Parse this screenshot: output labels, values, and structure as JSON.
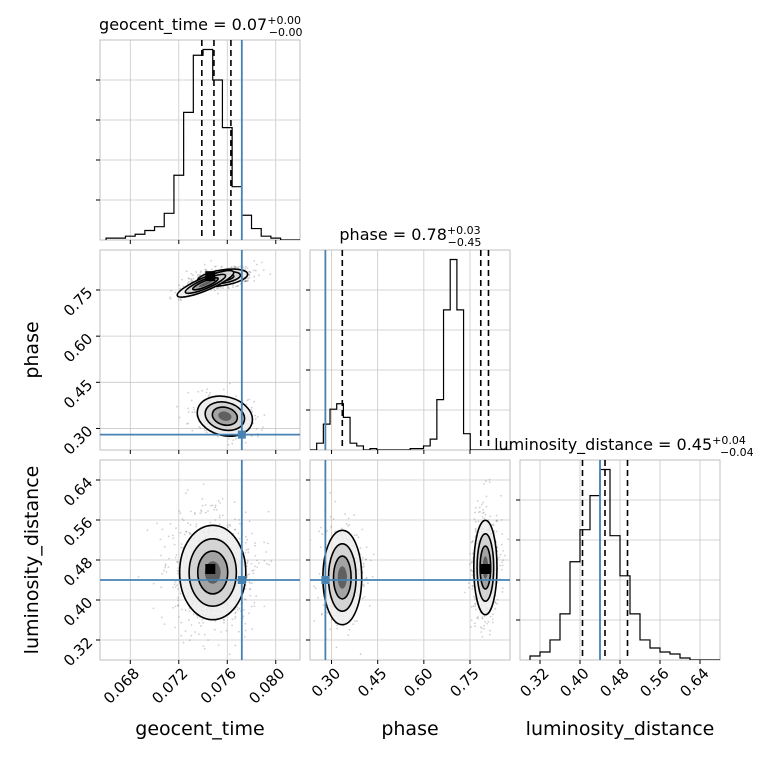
{
  "chart_data": {
    "type": "corner",
    "truth_color": "#4682b4",
    "parameters": [
      {
        "key": "geocent_time",
        "label": "geocent_time",
        "title_main": "geocent_time = 0.07",
        "title_plus": "+0.00",
        "title_minus": "−0.00",
        "range": [
          0.0655,
          0.082
        ],
        "ticks": [
          0.068,
          0.072,
          0.076,
          0.08
        ],
        "tick_labels": [
          "0.068",
          "0.072",
          "0.076",
          "0.080"
        ],
        "quantiles": [
          0.0739,
          0.0749,
          0.0763
        ],
        "truth": 0.0772,
        "hist": {
          "edges_start": 0.066,
          "bin_width": 0.0008,
          "counts": [
            1,
            1,
            2,
            3,
            5,
            7,
            14,
            34,
            67,
            97,
            100,
            84,
            59,
            28,
            13,
            6,
            2,
            1,
            0,
            0
          ]
        }
      },
      {
        "key": "phase",
        "label": "phase",
        "title_main": "phase = 0.78",
        "title_plus": "+0.03",
        "title_minus": "−0.45",
        "range": [
          0.23,
          0.88
        ],
        "ticks": [
          0.3,
          0.45,
          0.6,
          0.75
        ],
        "tick_labels": [
          "0.30",
          "0.45",
          "0.60",
          "0.75"
        ],
        "quantiles": [
          0.335,
          0.785,
          0.81
        ],
        "truth": 0.28,
        "hist": {
          "edges_start": 0.23,
          "bin_width": 0.0217,
          "counts": [
            0,
            5,
            19,
            30,
            34,
            24,
            5,
            3,
            0,
            1,
            0,
            0,
            0,
            0,
            0,
            1,
            1,
            3,
            8,
            37,
            103,
            140,
            103,
            12,
            0,
            0,
            0,
            0,
            0,
            0
          ]
        }
      },
      {
        "key": "luminosity_distance",
        "label": "luminosity_distance",
        "title_main": "luminosity_distance = 0.45",
        "title_plus": "+0.04",
        "title_minus": "−0.04",
        "range": [
          0.28,
          0.68
        ],
        "ticks": [
          0.32,
          0.4,
          0.48,
          0.56,
          0.64
        ],
        "tick_labels": [
          "0.32",
          "0.40",
          "0.48",
          "0.56",
          "0.64"
        ],
        "quantiles": [
          0.405,
          0.45,
          0.495
        ],
        "truth": 0.44,
        "hist": {
          "edges_start": 0.3,
          "bin_width": 0.02,
          "counts": [
            2,
            4,
            10,
            23,
            49,
            65,
            82,
            95,
            62,
            42,
            23,
            10,
            6,
            4,
            3,
            1,
            0,
            0,
            0,
            0
          ]
        }
      }
    ],
    "panels_2d": [
      {
        "x": "geocent_time",
        "y": "phase",
        "modes": [
          {
            "x": 0.0756,
            "y": 0.79,
            "sx": 0.001,
            "sy": 0.012,
            "rot": -0.15,
            "weight": 0.6
          },
          {
            "x": 0.0742,
            "y": 0.77,
            "sx": 0.0012,
            "sy": 0.01,
            "rot": -0.4,
            "weight": 0.12
          },
          {
            "x": 0.0758,
            "y": 0.34,
            "sx": 0.0011,
            "sy": 0.03,
            "rot": 0.25,
            "weight": 0.28
          }
        ],
        "peak": {
          "x": 0.0746,
          "y": 0.795
        }
      },
      {
        "x": "geocent_time",
        "y": "luminosity_distance",
        "modes": [
          {
            "x": 0.0748,
            "y": 0.455,
            "sx": 0.0013,
            "sy": 0.045,
            "rot": 0.0,
            "weight": 1.0
          }
        ],
        "peak": {
          "x": 0.0746,
          "y": 0.462
        }
      },
      {
        "x": "phase",
        "y": "luminosity_distance",
        "modes": [
          {
            "x": 0.335,
            "y": 0.445,
            "sx": 0.03,
            "sy": 0.045,
            "rot": 0.0,
            "weight": 0.35
          },
          {
            "x": 0.8,
            "y": 0.465,
            "sx": 0.018,
            "sy": 0.045,
            "rot": 0.0,
            "weight": 0.65
          }
        ],
        "peak": {
          "x": 0.8,
          "y": 0.462
        }
      }
    ]
  }
}
